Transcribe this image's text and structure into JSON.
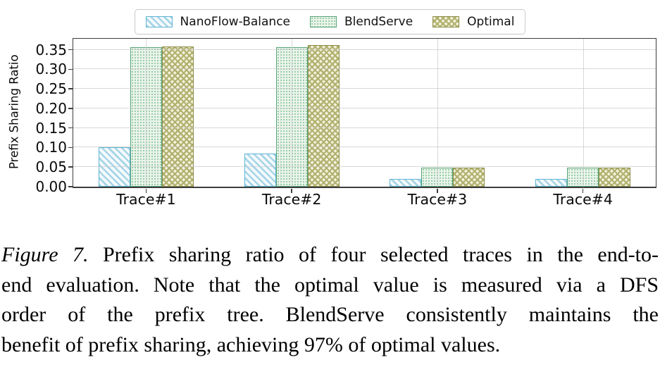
{
  "figure": {
    "caption": {
      "figure_label": "Figure 7.",
      "line1_rest": "Prefix sharing ratio of four selected traces in the end-to-",
      "line2": "end evaluation. Note that the optimal value is measured via a DFS",
      "line3": "order of the prefix tree. BlendServe consistently maintains the",
      "line4": "benefit of prefix sharing, achieving 97% of optimal values."
    }
  },
  "chart_data": {
    "type": "bar",
    "title": "",
    "categories": [
      "Trace#1",
      "Trace#2",
      "Trace#3",
      "Trace#4"
    ],
    "series": [
      {
        "name": "NanoFlow-Balance",
        "values": [
          0.1,
          0.085,
          0.02,
          0.02
        ],
        "edge_color": "#5fb3d3",
        "fill_color": "#f5fafd",
        "hatch": "diagonal-stripes"
      },
      {
        "name": "BlendServe",
        "values": [
          0.357,
          0.356,
          0.048,
          0.048
        ],
        "edge_color": "#55a376",
        "fill_color": "#eaf4eb",
        "hatch": "dots"
      },
      {
        "name": "Optimal",
        "values": [
          0.358,
          0.361,
          0.049,
          0.049
        ],
        "edge_color": "#8c8c47",
        "fill_color": "#f2f0dd",
        "hatch": "cross-hatch"
      }
    ],
    "xlabel": "",
    "ylabel": "Prefix Sharing Ratio",
    "yticks": [
      0.0,
      0.05,
      0.1,
      0.15,
      0.2,
      0.25,
      0.3,
      0.35
    ],
    "ylim": [
      0,
      0.378
    ],
    "grid": true,
    "legend_position": "top-center"
  }
}
